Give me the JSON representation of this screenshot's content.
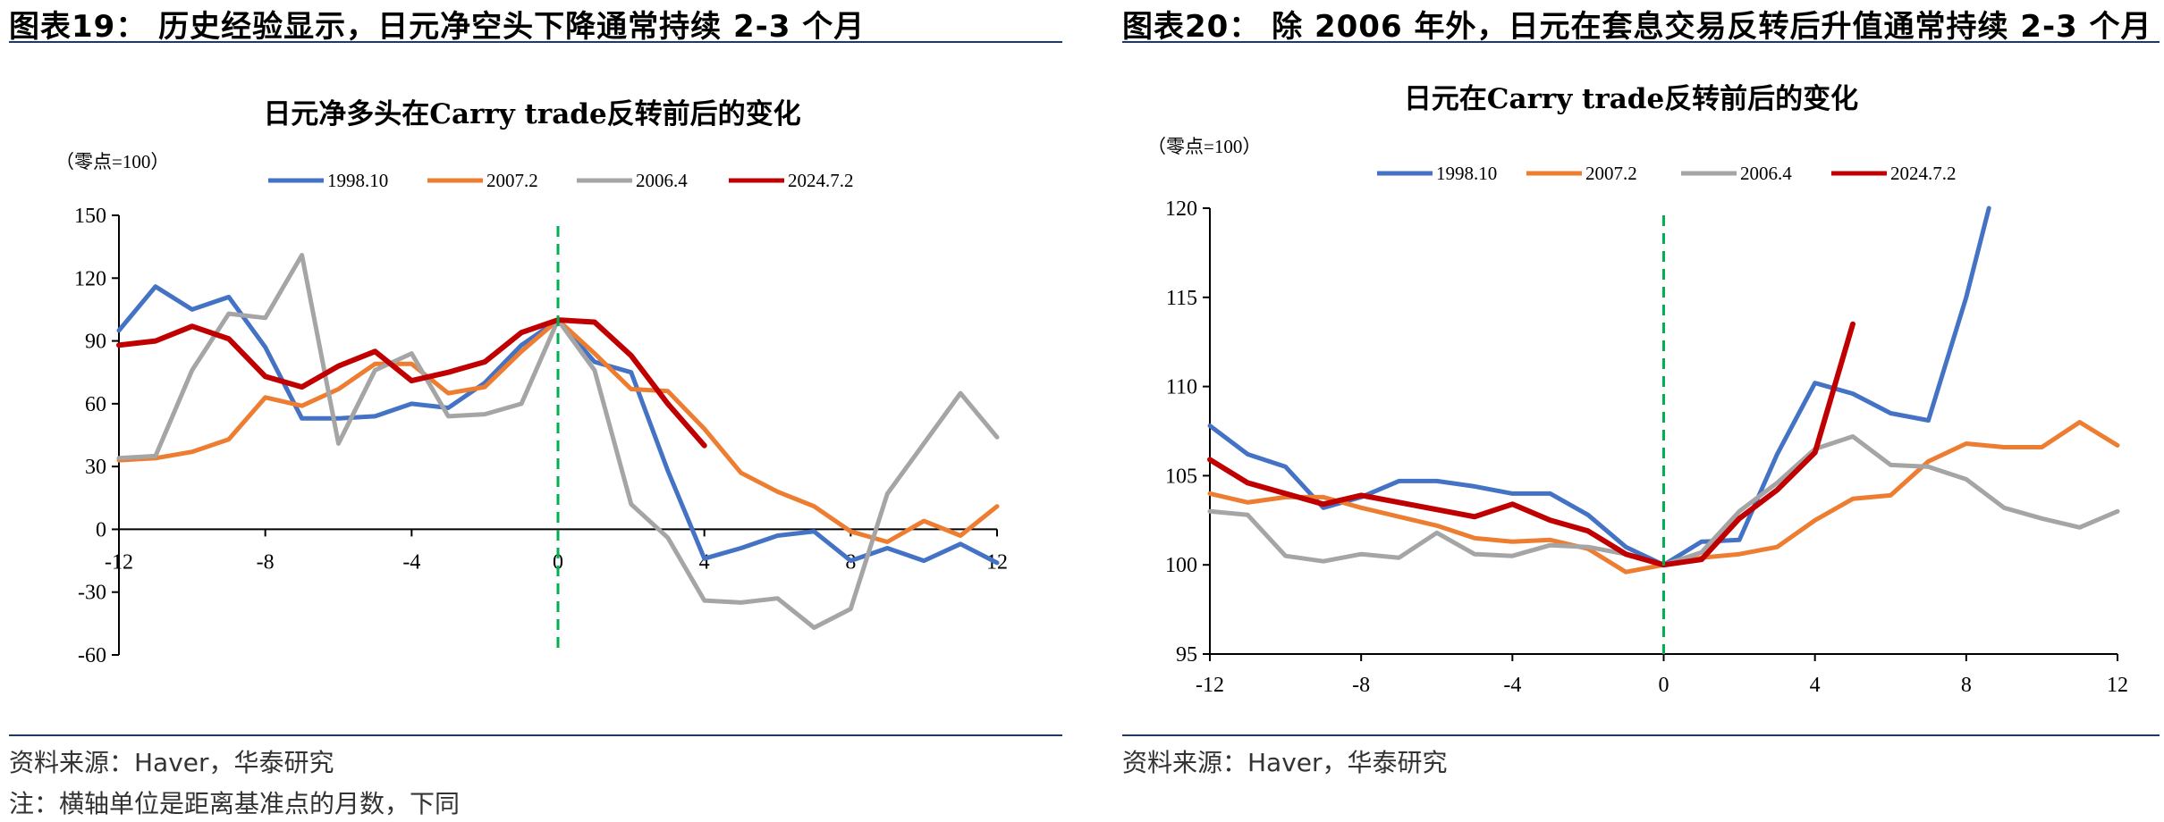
{
  "figures": [
    {
      "fig_title": "图表19： 历史经验显示，日元净空头下降通常持续 2-3 个月",
      "source": "资料来源：Haver，华泰研究",
      "note": "注：横轴单位是距离基准点的月数，下同"
    },
    {
      "fig_title": "图表20： 除 2006 年外，日元在套息交易反转后升值通常持续 2-3 个月",
      "source": "资料来源：Haver，华泰研究",
      "note": ""
    }
  ],
  "chart_data": [
    {
      "type": "line",
      "title": "日元净多头在Carry trade反转前后的变化",
      "unit": "（零点=100）",
      "xlabel": "",
      "ylabel": "",
      "xlim": [
        -12,
        12
      ],
      "ylim": [
        -60,
        150
      ],
      "xticks": [
        -12,
        -8,
        -4,
        0,
        4,
        8,
        12
      ],
      "yticks": [
        -60,
        -30,
        0,
        30,
        60,
        90,
        120,
        150
      ],
      "vline_x": 0,
      "legend_position": "top",
      "series": [
        {
          "name": "1998.10",
          "color": "#4472C4",
          "x": [
            -12,
            -11,
            -10,
            -9,
            -8,
            -7,
            -6,
            -5,
            -4,
            -3,
            -2,
            -1,
            0,
            1,
            2,
            3,
            4,
            5,
            6,
            7,
            8,
            9,
            10,
            11,
            12
          ],
          "y": [
            95,
            116,
            105,
            111,
            87,
            53,
            53,
            54,
            60,
            58,
            70,
            88,
            100,
            80,
            75,
            28,
            -14,
            -9,
            -3,
            -1,
            -15,
            -9,
            -15,
            -7,
            -16
          ]
        },
        {
          "name": "2007.2",
          "color": "#ED7D31",
          "x": [
            -12,
            -11,
            -10,
            -9,
            -8,
            -7,
            -6,
            -5,
            -4,
            -3,
            -2,
            -1,
            0,
            1,
            2,
            3,
            4,
            5,
            6,
            7,
            8,
            9,
            10,
            11,
            12
          ],
          "y": [
            33,
            34,
            37,
            43,
            63,
            59,
            67,
            79,
            79,
            65,
            68,
            85,
            100,
            84,
            67,
            66,
            48,
            27,
            18,
            11,
            -1,
            -6,
            4,
            -3,
            11
          ]
        },
        {
          "name": "2006.4",
          "color": "#A5A5A5",
          "x": [
            -12,
            -11,
            -10,
            -9,
            -8,
            -7,
            -6,
            -5,
            -4,
            -3,
            -2,
            -1,
            0,
            1,
            2,
            3,
            4,
            5,
            6,
            7,
            8,
            9,
            10,
            11,
            12
          ],
          "y": [
            34,
            35,
            76,
            103,
            101,
            131,
            41,
            76,
            84,
            54,
            55,
            60,
            100,
            76,
            12,
            -4,
            -34,
            -35,
            -33,
            -47,
            -38,
            17,
            41,
            65,
            44
          ]
        },
        {
          "name": "2024.7.2",
          "color": "#C00000",
          "x": [
            -12,
            -11,
            -10,
            -9,
            -8,
            -7,
            -6,
            -5,
            -4,
            -3,
            -2,
            -1,
            0,
            1,
            2,
            3,
            4
          ],
          "y": [
            88,
            90,
            97,
            91,
            73,
            68,
            78,
            85,
            71,
            75,
            80,
            94,
            100,
            99,
            83,
            60,
            40
          ]
        }
      ]
    },
    {
      "type": "line",
      "title": "日元在Carry trade反转前后的变化",
      "unit": "（零点=100）",
      "xlabel": "",
      "ylabel": "",
      "xlim": [
        -12,
        12
      ],
      "ylim": [
        95,
        120
      ],
      "xticks": [
        -12,
        -8,
        -4,
        0,
        4,
        8,
        12
      ],
      "yticks": [
        95,
        100,
        105,
        110,
        115,
        120
      ],
      "vline_x": 0,
      "legend_position": "top",
      "series": [
        {
          "name": "1998.10",
          "color": "#4472C4",
          "x": [
            -12,
            -11,
            -10,
            -9,
            -8,
            -7,
            -6,
            -5,
            -4,
            -3,
            -2,
            -1,
            0,
            1,
            2,
            3,
            4,
            5,
            6,
            7,
            8,
            8.6
          ],
          "y": [
            107.8,
            106.2,
            105.5,
            103.2,
            103.8,
            104.7,
            104.7,
            104.4,
            104.0,
            104.0,
            102.8,
            101.0,
            100.0,
            101.3,
            101.4,
            106.2,
            110.2,
            109.6,
            108.5,
            108.1,
            115.0,
            120.0
          ]
        },
        {
          "name": "2007.2",
          "color": "#ED7D31",
          "x": [
            -12,
            -11,
            -10,
            -9,
            -8,
            -7,
            -6,
            -5,
            -4,
            -3,
            -2,
            -1,
            0,
            1,
            2,
            3,
            4,
            5,
            6,
            7,
            8,
            9,
            10,
            11,
            12
          ],
          "y": [
            104.0,
            103.5,
            103.8,
            103.8,
            103.2,
            102.7,
            102.2,
            101.5,
            101.3,
            101.4,
            100.9,
            99.6,
            100.0,
            100.4,
            100.6,
            101.0,
            102.5,
            103.7,
            103.9,
            105.8,
            106.8,
            106.6,
            106.6,
            108.0,
            106.7
          ]
        },
        {
          "name": "2006.4",
          "color": "#A5A5A5",
          "x": [
            -12,
            -11,
            -10,
            -9,
            -8,
            -7,
            -6,
            -5,
            -4,
            -3,
            -2,
            -1,
            0,
            1,
            2,
            3,
            4,
            5,
            6,
            7,
            8,
            9,
            10,
            11,
            12
          ],
          "y": [
            103.0,
            102.8,
            100.5,
            100.2,
            100.6,
            100.4,
            101.8,
            100.6,
            100.5,
            101.1,
            101.0,
            100.6,
            100.0,
            100.7,
            103.0,
            104.6,
            106.5,
            107.2,
            105.6,
            105.5,
            104.8,
            103.2,
            102.6,
            102.1,
            103.0
          ]
        },
        {
          "name": "2024.7.2",
          "color": "#C00000",
          "x": [
            -12,
            -11,
            -10,
            -9,
            -8,
            -7,
            -6,
            -5,
            -4,
            -3,
            -2,
            -1,
            0,
            1,
            2,
            3,
            4,
            5
          ],
          "y": [
            105.9,
            104.6,
            104.0,
            103.4,
            103.9,
            103.5,
            103.1,
            102.7,
            103.4,
            102.5,
            101.9,
            100.6,
            100.0,
            100.3,
            102.6,
            104.2,
            106.3,
            113.5
          ]
        }
      ]
    }
  ]
}
